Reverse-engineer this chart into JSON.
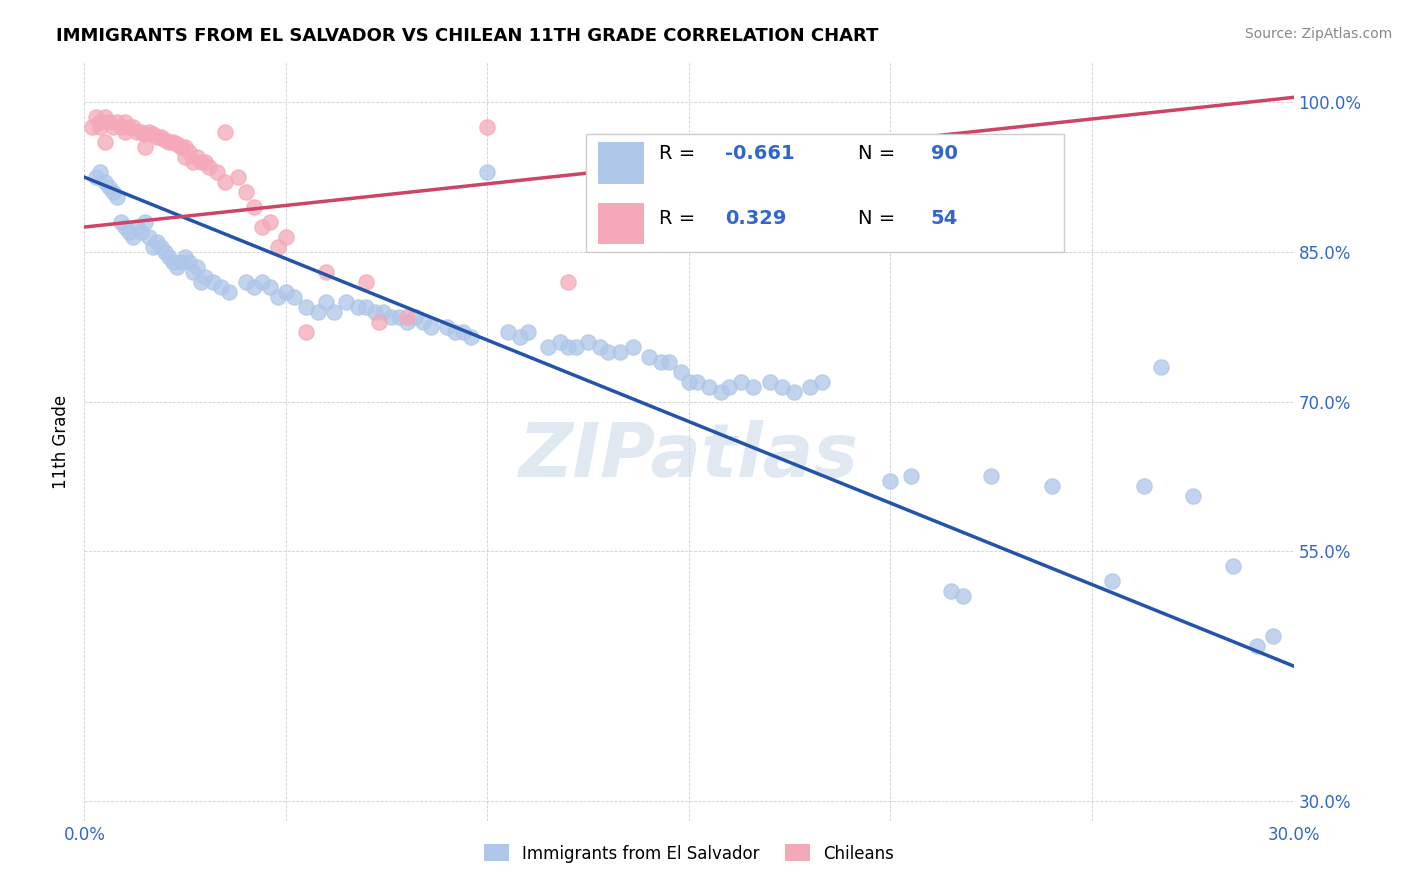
{
  "title": "IMMIGRANTS FROM EL SALVADOR VS CHILEAN 11TH GRADE CORRELATION CHART",
  "source": "Source: ZipAtlas.com",
  "ylabel": "11th Grade",
  "R_blue": -0.661,
  "N_blue": 90,
  "R_pink": 0.329,
  "N_pink": 54,
  "blue_color": "#aec6e8",
  "pink_color": "#f4a8b8",
  "blue_line_color": "#2255aa",
  "pink_line_color": "#cc4466",
  "background_color": "#ffffff",
  "watermark": "ZIPatlas",
  "legend_blue_label": "Immigrants from El Salvador",
  "legend_pink_label": "Chileans",
  "xlim": [
    0.0,
    0.3
  ],
  "ylim": [
    0.28,
    1.04
  ],
  "blue_line_endpoints": [
    [
      0.0,
      0.925
    ],
    [
      0.3,
      0.435
    ]
  ],
  "pink_line_endpoints": [
    [
      0.0,
      0.875
    ],
    [
      0.3,
      1.005
    ]
  ],
  "blue_scatter": [
    [
      0.003,
      0.925
    ],
    [
      0.004,
      0.93
    ],
    [
      0.005,
      0.92
    ],
    [
      0.006,
      0.915
    ],
    [
      0.007,
      0.91
    ],
    [
      0.008,
      0.905
    ],
    [
      0.009,
      0.88
    ],
    [
      0.01,
      0.875
    ],
    [
      0.011,
      0.87
    ],
    [
      0.012,
      0.865
    ],
    [
      0.013,
      0.875
    ],
    [
      0.014,
      0.87
    ],
    [
      0.015,
      0.88
    ],
    [
      0.016,
      0.865
    ],
    [
      0.017,
      0.855
    ],
    [
      0.018,
      0.86
    ],
    [
      0.019,
      0.855
    ],
    [
      0.02,
      0.85
    ],
    [
      0.021,
      0.845
    ],
    [
      0.022,
      0.84
    ],
    [
      0.023,
      0.835
    ],
    [
      0.024,
      0.84
    ],
    [
      0.025,
      0.845
    ],
    [
      0.026,
      0.84
    ],
    [
      0.027,
      0.83
    ],
    [
      0.028,
      0.835
    ],
    [
      0.029,
      0.82
    ],
    [
      0.03,
      0.825
    ],
    [
      0.032,
      0.82
    ],
    [
      0.034,
      0.815
    ],
    [
      0.036,
      0.81
    ],
    [
      0.04,
      0.82
    ],
    [
      0.042,
      0.815
    ],
    [
      0.044,
      0.82
    ],
    [
      0.046,
      0.815
    ],
    [
      0.048,
      0.805
    ],
    [
      0.05,
      0.81
    ],
    [
      0.052,
      0.805
    ],
    [
      0.055,
      0.795
    ],
    [
      0.058,
      0.79
    ],
    [
      0.06,
      0.8
    ],
    [
      0.062,
      0.79
    ],
    [
      0.065,
      0.8
    ],
    [
      0.068,
      0.795
    ],
    [
      0.07,
      0.795
    ],
    [
      0.072,
      0.79
    ],
    [
      0.074,
      0.79
    ],
    [
      0.076,
      0.785
    ],
    [
      0.078,
      0.785
    ],
    [
      0.08,
      0.78
    ],
    [
      0.082,
      0.785
    ],
    [
      0.084,
      0.78
    ],
    [
      0.086,
      0.775
    ],
    [
      0.09,
      0.775
    ],
    [
      0.092,
      0.77
    ],
    [
      0.094,
      0.77
    ],
    [
      0.096,
      0.765
    ],
    [
      0.1,
      0.93
    ],
    [
      0.105,
      0.77
    ],
    [
      0.108,
      0.765
    ],
    [
      0.11,
      0.77
    ],
    [
      0.115,
      0.755
    ],
    [
      0.118,
      0.76
    ],
    [
      0.12,
      0.755
    ],
    [
      0.122,
      0.755
    ],
    [
      0.125,
      0.76
    ],
    [
      0.128,
      0.755
    ],
    [
      0.13,
      0.75
    ],
    [
      0.133,
      0.75
    ],
    [
      0.136,
      0.755
    ],
    [
      0.14,
      0.745
    ],
    [
      0.143,
      0.74
    ],
    [
      0.145,
      0.74
    ],
    [
      0.148,
      0.73
    ],
    [
      0.15,
      0.72
    ],
    [
      0.152,
      0.72
    ],
    [
      0.155,
      0.715
    ],
    [
      0.158,
      0.71
    ],
    [
      0.16,
      0.715
    ],
    [
      0.163,
      0.72
    ],
    [
      0.166,
      0.715
    ],
    [
      0.17,
      0.72
    ],
    [
      0.173,
      0.715
    ],
    [
      0.176,
      0.71
    ],
    [
      0.18,
      0.715
    ],
    [
      0.183,
      0.72
    ],
    [
      0.2,
      0.62
    ],
    [
      0.205,
      0.625
    ],
    [
      0.215,
      0.51
    ],
    [
      0.218,
      0.505
    ],
    [
      0.225,
      0.625
    ],
    [
      0.24,
      0.615
    ],
    [
      0.255,
      0.52
    ],
    [
      0.263,
      0.615
    ],
    [
      0.267,
      0.735
    ],
    [
      0.275,
      0.605
    ],
    [
      0.285,
      0.535
    ],
    [
      0.291,
      0.455
    ],
    [
      0.295,
      0.465
    ]
  ],
  "pink_scatter": [
    [
      0.002,
      0.975
    ],
    [
      0.003,
      0.985
    ],
    [
      0.004,
      0.975
    ],
    [
      0.005,
      0.985
    ],
    [
      0.006,
      0.98
    ],
    [
      0.007,
      0.975
    ],
    [
      0.008,
      0.98
    ],
    [
      0.009,
      0.975
    ],
    [
      0.01,
      0.98
    ],
    [
      0.011,
      0.975
    ],
    [
      0.012,
      0.975
    ],
    [
      0.013,
      0.97
    ],
    [
      0.014,
      0.97
    ],
    [
      0.015,
      0.968
    ],
    [
      0.016,
      0.97
    ],
    [
      0.017,
      0.968
    ],
    [
      0.018,
      0.965
    ],
    [
      0.019,
      0.965
    ],
    [
      0.02,
      0.962
    ],
    [
      0.021,
      0.96
    ],
    [
      0.022,
      0.96
    ],
    [
      0.023,
      0.958
    ],
    [
      0.024,
      0.955
    ],
    [
      0.025,
      0.955
    ],
    [
      0.026,
      0.95
    ],
    [
      0.027,
      0.94
    ],
    [
      0.028,
      0.945
    ],
    [
      0.029,
      0.94
    ],
    [
      0.03,
      0.94
    ],
    [
      0.031,
      0.935
    ],
    [
      0.033,
      0.93
    ],
    [
      0.035,
      0.92
    ],
    [
      0.038,
      0.925
    ],
    [
      0.04,
      0.91
    ],
    [
      0.042,
      0.895
    ],
    [
      0.044,
      0.875
    ],
    [
      0.046,
      0.88
    ],
    [
      0.048,
      0.855
    ],
    [
      0.05,
      0.865
    ],
    [
      0.06,
      0.83
    ],
    [
      0.07,
      0.82
    ],
    [
      0.073,
      0.78
    ],
    [
      0.08,
      0.785
    ],
    [
      0.1,
      0.975
    ],
    [
      0.12,
      0.82
    ],
    [
      0.055,
      0.77
    ],
    [
      0.035,
      0.97
    ],
    [
      0.025,
      0.945
    ],
    [
      0.015,
      0.955
    ],
    [
      0.01,
      0.97
    ],
    [
      0.005,
      0.96
    ],
    [
      0.004,
      0.98
    ]
  ]
}
